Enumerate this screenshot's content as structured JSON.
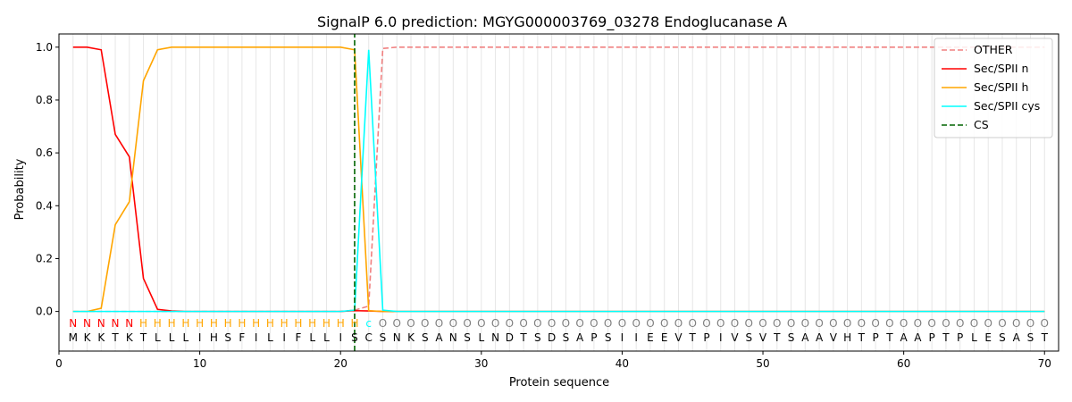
{
  "chart_data": {
    "type": "line",
    "title": "SignalP 6.0 prediction: MGYG000003769_03278 Endoglucanase A",
    "xlabel": "Protein sequence",
    "ylabel": "Probability",
    "xlim": [
      0,
      71
    ],
    "ylim": [
      -0.15,
      1.05
    ],
    "xticks": [
      0,
      10,
      20,
      30,
      40,
      50,
      60,
      70
    ],
    "yticks": [
      0.0,
      0.2,
      0.4,
      0.6,
      0.8,
      1.0
    ],
    "grid": "vertical lines at each residue",
    "legend_position": "top-right",
    "sequence": "MKKTKTLLLIHSFILIFLLISCSNKSANSLNDTSDSAPSIIEEVTPIVSVTSAAVHTPTAAPTPLESAST",
    "labels": "NNNNNHHHHHHHHHHHHHHHHCOOOOOOOOOOOOOOOOOOOOOOOOOOOOOOOOOOOOOOOOOOOOOOOO",
    "label_colors": {
      "N": "#ff0000",
      "H": "#ffa500",
      "C": "#00ffff",
      "O": "#808080"
    },
    "series": [
      {
        "name": "OTHER",
        "color": "#f08080",
        "dash": "dashed",
        "x": [
          1,
          2,
          3,
          4,
          5,
          6,
          7,
          8,
          9,
          10,
          11,
          12,
          13,
          14,
          15,
          16,
          17,
          18,
          19,
          20,
          21,
          22,
          23,
          24,
          70
        ],
        "y": [
          0,
          0,
          0,
          0,
          0,
          0,
          0,
          0,
          0,
          0,
          0,
          0,
          0,
          0,
          0,
          0,
          0,
          0,
          0,
          0,
          0.005,
          0.02,
          0.995,
          1.0,
          1.0
        ]
      },
      {
        "name": "Sec/SPII n",
        "color": "#ff0000",
        "dash": "solid",
        "x": [
          1,
          2,
          3,
          4,
          5,
          6,
          7,
          8,
          9,
          20,
          21,
          22,
          23,
          70
        ],
        "y": [
          1.0,
          1.0,
          0.99,
          0.67,
          0.585,
          0.125,
          0.008,
          0.002,
          0,
          0,
          0.003,
          0.002,
          0,
          0
        ]
      },
      {
        "name": "Sec/SPII h",
        "color": "#ffa500",
        "dash": "solid",
        "x": [
          1,
          2,
          3,
          4,
          5,
          6,
          7,
          8,
          9,
          19,
          20,
          21,
          22,
          23,
          70
        ],
        "y": [
          0,
          0,
          0.012,
          0.328,
          0.415,
          0.873,
          0.99,
          1.0,
          1.0,
          1.0,
          1.0,
          0.99,
          0.003,
          0,
          0
        ]
      },
      {
        "name": "Sec/SPII cys",
        "color": "#00ffff",
        "dash": "solid",
        "x": [
          1,
          20,
          21,
          22,
          23,
          24,
          70
        ],
        "y": [
          0,
          0,
          0.005,
          0.99,
          0.005,
          0,
          0
        ]
      },
      {
        "name": "CS",
        "color": "#006400",
        "dash": "dashed",
        "x": [
          21,
          21
        ],
        "y": [
          -0.15,
          1.05
        ]
      }
    ]
  }
}
